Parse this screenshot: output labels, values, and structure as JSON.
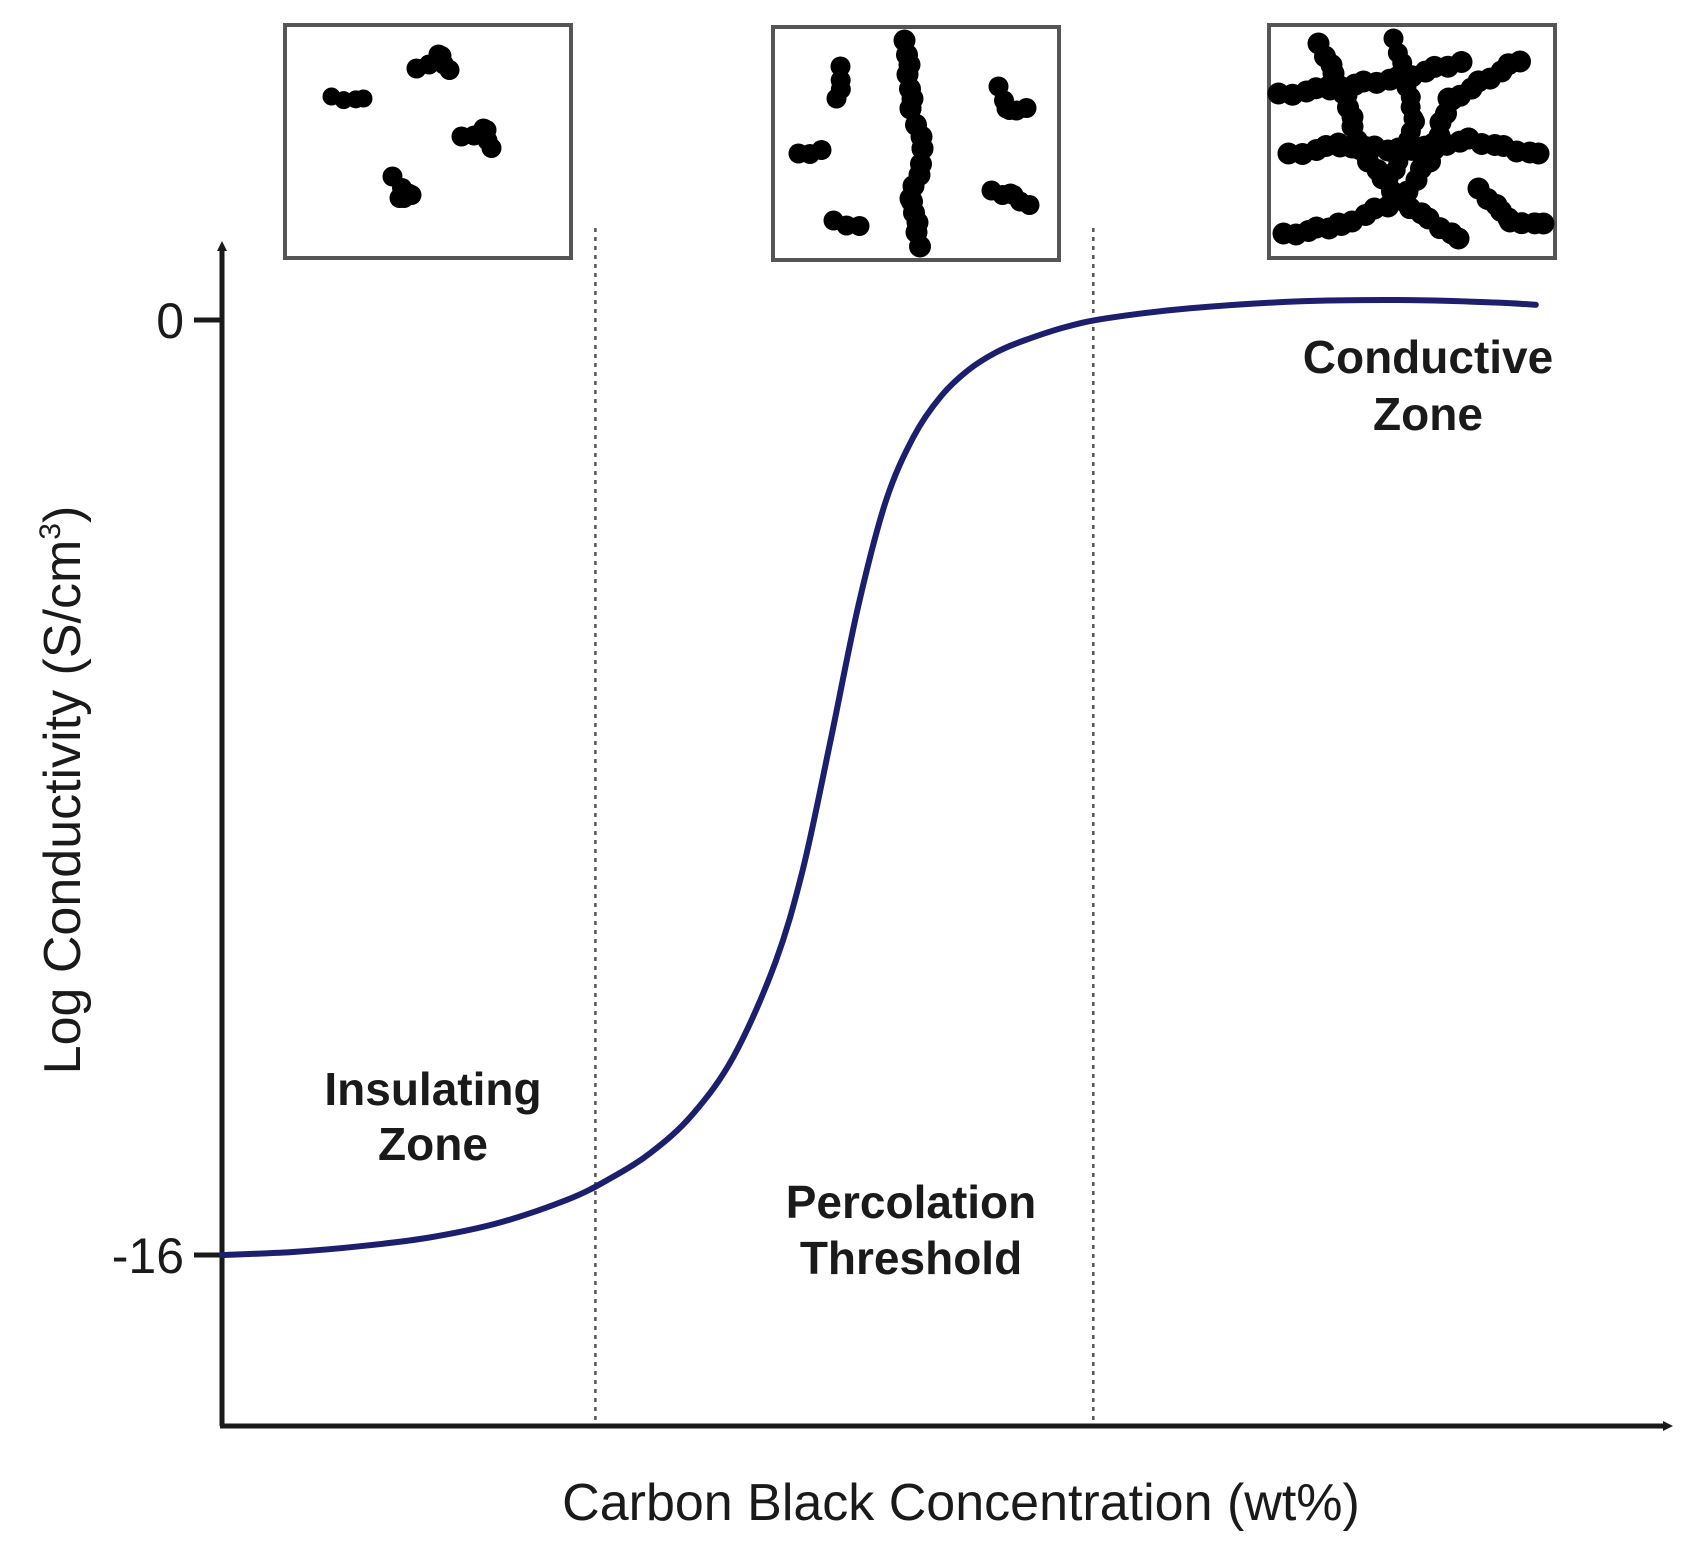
{
  "chart_data": {
    "type": "line",
    "title": "",
    "xlabel": "Carbon Black Concentration (wt%)",
    "ylabel_main": "Log Conductivity (S/cm",
    "ylabel_sup": "3",
    "ylabel_close": ")",
    "yticks": [
      {
        "label": "0",
        "value": 0
      },
      {
        "label": "-16",
        "value": -16
      }
    ],
    "ylim": [
      -19,
      1.5
    ],
    "xlim": [
      0,
      100
    ],
    "grid": false,
    "dividers": [
      27,
      63
    ],
    "series": [
      {
        "color": "#1c1f6e",
        "x": [
          0,
          5,
          10,
          15,
          20,
          25,
          28,
          31,
          34,
          37,
          40,
          42,
          44,
          46,
          48,
          50,
          52,
          54,
          56,
          58,
          61,
          64,
          70,
          78,
          86,
          92,
          95
        ],
        "y": [
          -16,
          -15.95,
          -15.85,
          -15.7,
          -15.45,
          -15.05,
          -14.7,
          -14.25,
          -13.6,
          -12.6,
          -11.0,
          -9.4,
          -7.2,
          -4.9,
          -3.1,
          -2.0,
          -1.3,
          -0.85,
          -0.55,
          -0.35,
          -0.12,
          0.03,
          0.2,
          0.32,
          0.34,
          0.3,
          0.26
        ]
      }
    ],
    "zones": [
      {
        "line1": "Insulating",
        "line2": "Zone"
      },
      {
        "line1": "Percolation",
        "line2": "Threshold"
      },
      {
        "line1": "Conductive",
        "line2": "Zone"
      }
    ],
    "insets": [
      {
        "stage": "insulating"
      },
      {
        "stage": "percolation"
      },
      {
        "stage": "conductive"
      }
    ]
  }
}
